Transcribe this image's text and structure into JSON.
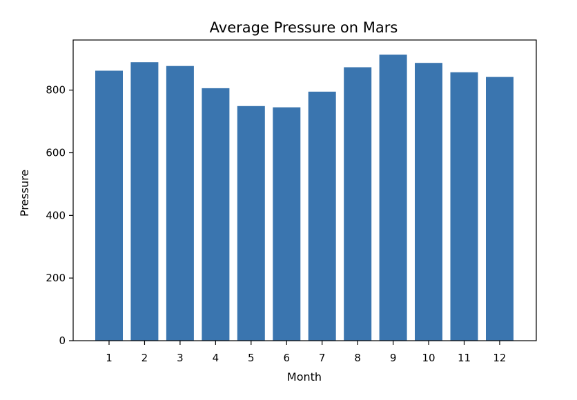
{
  "chart_data": {
    "type": "bar",
    "title": "Average Pressure on Mars",
    "xlabel": "Month",
    "ylabel": "Pressure",
    "categories": [
      "1",
      "2",
      "3",
      "4",
      "5",
      "6",
      "7",
      "8",
      "9",
      "10",
      "11",
      "12"
    ],
    "values": [
      862,
      889,
      877,
      806,
      749,
      745,
      795,
      873,
      913,
      887,
      857,
      842
    ],
    "ylim": [
      0,
      960
    ],
    "yticks": [
      0,
      200,
      400,
      600,
      800
    ],
    "grid": false,
    "bar_color": "#3a75af"
  }
}
